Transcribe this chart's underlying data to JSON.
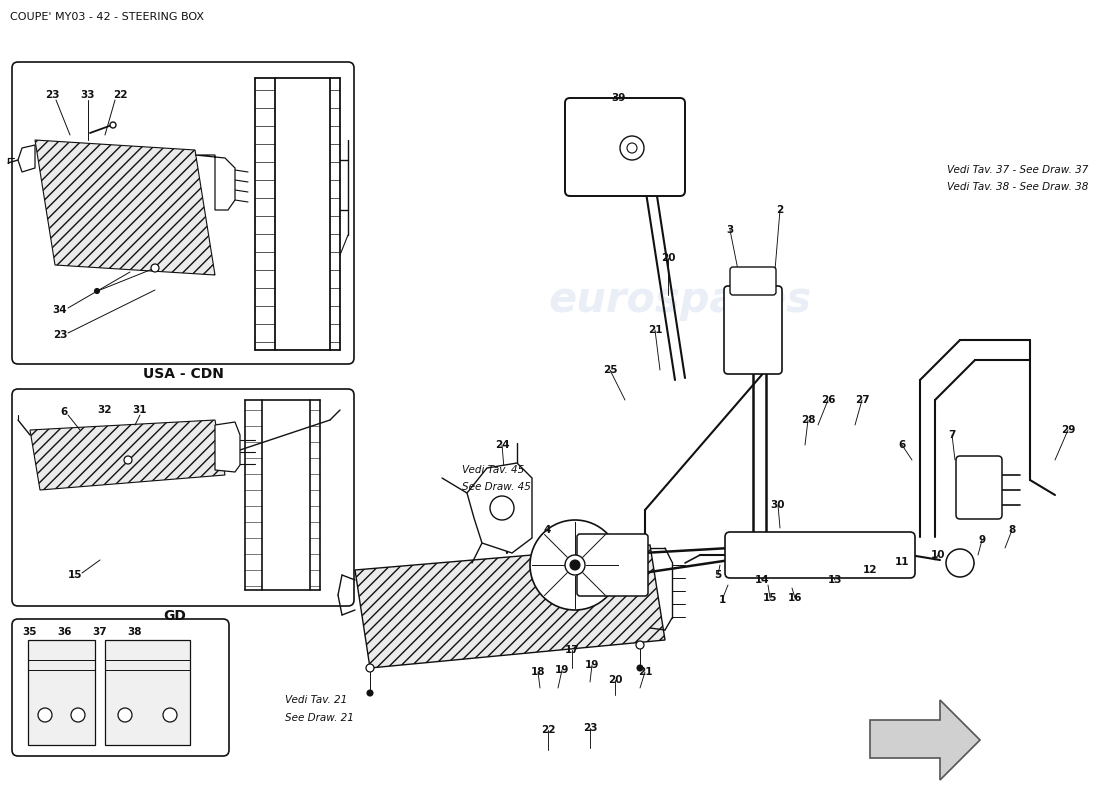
{
  "title": "COUPE' MY03 - 42 - STEERING BOX",
  "title_fontsize": 8,
  "title_color": "#111111",
  "background_color": "#ffffff",
  "watermark_text": "eurospares",
  "watermark_color": "#c8d4e8",
  "watermark_alpha": 0.38,
  "line_color": "#111111",
  "label_fontsize": 7.5,
  "italic_fontsize": 7.5,
  "usa_cdn_label": "USA - CDN",
  "gd_label": "GD",
  "vedi_tav37": "Vedi Tav. 37 - See Draw. 37",
  "vedi_tav38": "Vedi Tav. 38 - See Draw. 38",
  "vedi_tav45_1": "Vedi Tav. 45",
  "vedi_tav45_2": "See Draw. 45",
  "vedi_tav21_1": "Vedi Tav. 21",
  "vedi_tav21_2": "See Draw. 21"
}
